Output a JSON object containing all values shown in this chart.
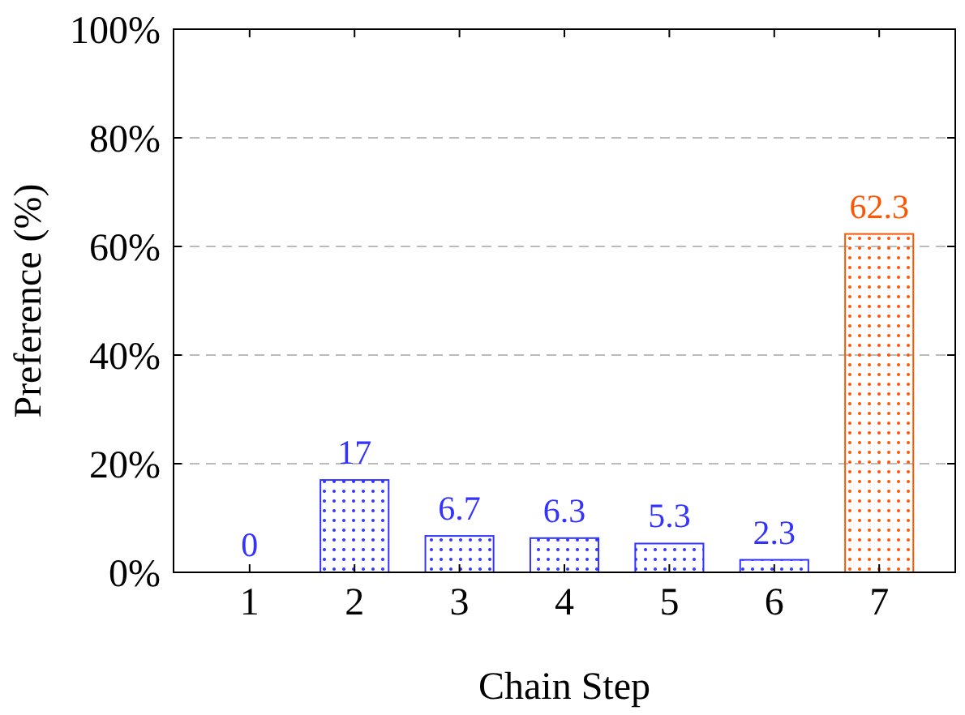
{
  "chart_data": {
    "type": "bar",
    "xlabel": "Chain Step",
    "ylabel": "Preference (%)",
    "categories": [
      "1",
      "2",
      "3",
      "4",
      "5",
      "6",
      "7"
    ],
    "values": [
      0,
      17,
      6.7,
      6.3,
      5.3,
      2.3,
      62.3
    ],
    "colors": [
      "#3333ff",
      "#3333ff",
      "#3333ff",
      "#3333ff",
      "#3333ff",
      "#3333ff",
      "#ff5500"
    ],
    "ylim": [
      0,
      100
    ],
    "yticks": [
      {
        "value": 0,
        "label": "0%"
      },
      {
        "value": 20,
        "label": "20%"
      },
      {
        "value": 40,
        "label": "40%"
      },
      {
        "value": 60,
        "label": "60%"
      },
      {
        "value": 80,
        "label": "80%"
      },
      {
        "value": 100,
        "label": "100%"
      }
    ],
    "grid": "y",
    "data_labels": true
  }
}
